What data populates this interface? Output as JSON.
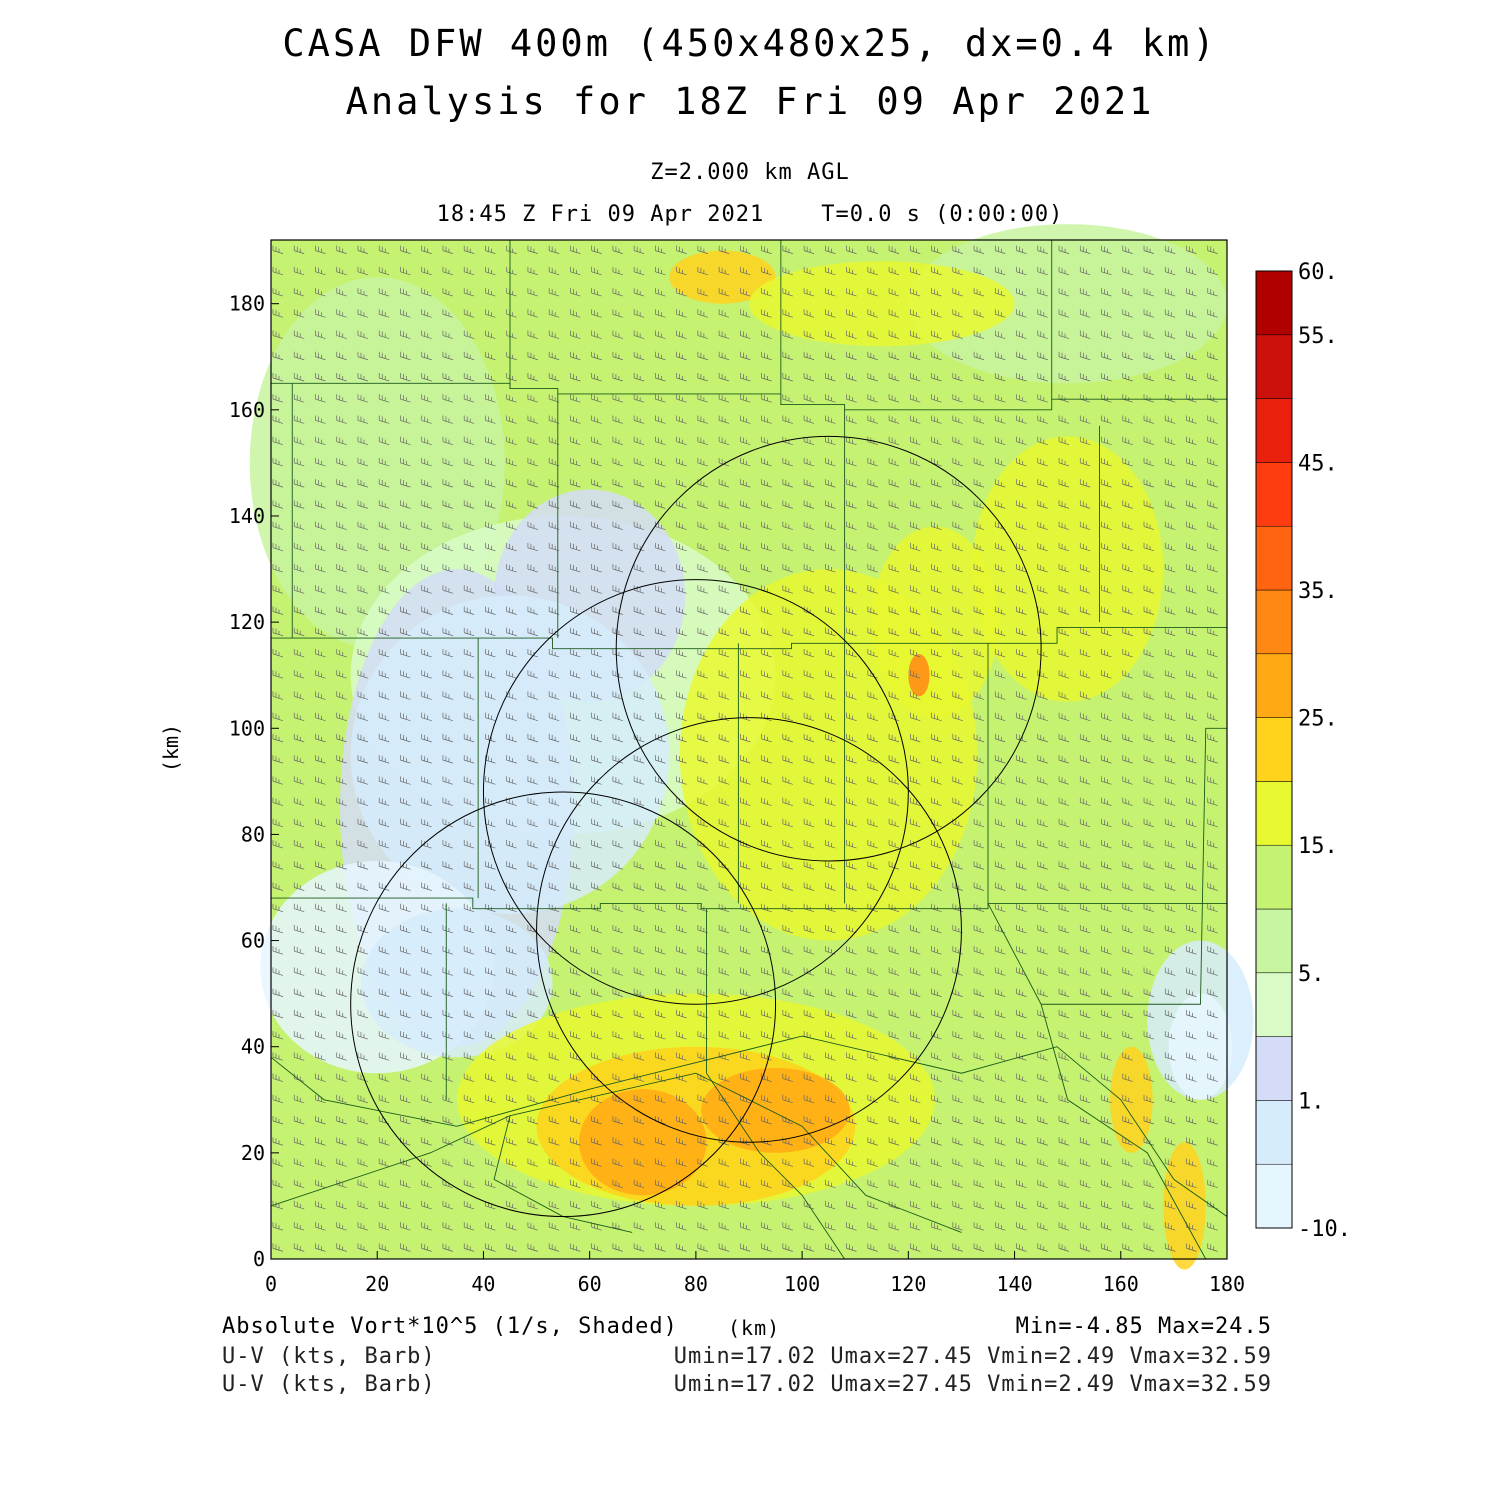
{
  "title": {
    "line1": "CASA DFW 400m (450x480x25, dx=0.4 km)",
    "line2": "Analysis for 18Z Fri 09 Apr 2021"
  },
  "subtitle": {
    "level": "Z=2.000 km AGL",
    "time": "18:45 Z Fri 09 Apr 2021    T=0.0 s (0:00:00)"
  },
  "footer": {
    "field1": "Absolute Vort*10^5 (1/s, Shaded)",
    "field2": "U-V (kts, Barb)",
    "field3": "U-V (kts, Barb)",
    "x_unit": "(km)",
    "minmax": "Min=-4.85 Max=24.5",
    "uv1": "Umin=17.02 Umax=27.45 Vmin=2.49 Vmax=32.59",
    "uv2": "Umin=17.02 Umax=27.45 Vmin=2.49 Vmax=32.59"
  },
  "chart_data": {
    "type": "heatmap",
    "xlabel": "(km)",
    "ylabel": "(km)",
    "xlim": [
      0,
      180
    ],
    "ylim": [
      0,
      192
    ],
    "xticks": [
      "0",
      "20",
      "40",
      "60",
      "80",
      "100",
      "120",
      "140",
      "160",
      "180"
    ],
    "yticks": [
      "0",
      "20",
      "40",
      "60",
      "80",
      "100",
      "120",
      "140",
      "160",
      "180"
    ],
    "colorbar": {
      "levels": [
        -10,
        -5,
        1,
        3,
        5,
        10,
        15,
        20,
        25,
        30,
        35,
        40,
        45,
        50,
        55,
        60
      ],
      "labels": [
        "-10.",
        "1.",
        "5.",
        "15.",
        "25.",
        "35.",
        "45.",
        "55.",
        "60."
      ],
      "colors": [
        "#e6f6ff",
        "#d6ecfb",
        "#d4dcf7",
        "#d8fbc8",
        "#c8f5a0",
        "#c6f272",
        "#e8f830",
        "#ffd21c",
        "#ffaa14",
        "#ff8814",
        "#ff6410",
        "#ff3c10",
        "#e8200c",
        "#cc100a",
        "#b00000"
      ]
    },
    "range_rings_km": [
      {
        "center": [
          80,
          88
        ],
        "radius": 40
      },
      {
        "center": [
          105,
          115
        ],
        "radius": 40
      },
      {
        "center": [
          55,
          48
        ],
        "radius": 40
      },
      {
        "center": [
          90,
          62
        ],
        "radius": 40
      }
    ],
    "wind": {
      "field": "U-V (kts, Barb)",
      "u_range": [
        17.02,
        27.45
      ],
      "v_range": [
        2.49,
        32.59
      ]
    },
    "vorticity_range": [
      -4.85,
      24.5
    ]
  }
}
